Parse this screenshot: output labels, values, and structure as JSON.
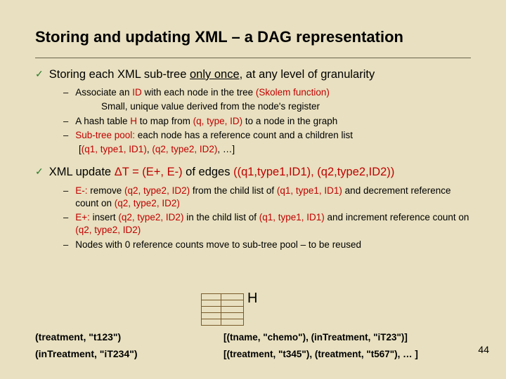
{
  "title": "Storing and updating XML – a DAG representation",
  "bullet1": {
    "lead": "Storing each XML sub-tree ",
    "underline": "only once",
    "tail": ", at any level of granularity"
  },
  "sub1": {
    "a_lead": "Associate an ",
    "a_id": "ID",
    "a_mid": " with each node in the tree  ",
    "a_skolem": "(Skolem function)",
    "a2": "Small, unique value derived from the node's register",
    "b_lead": "A hash table ",
    "b_h": "H",
    "b_mid": " to map from ",
    "b_tuple": "(q, type, ID)",
    "b_tail": " to a node in the graph",
    "c_head": "Sub-tree pool:",
    "c_tail": " each node has a reference count and a children list",
    "c2_lead": "[",
    "c2_t1": "(q1, type1, ID1)",
    "c2_m1": ", ",
    "c2_t2": "(q2, type2, ID2)",
    "c2_tail": ", …]"
  },
  "bullet2": {
    "lead": "XML update ",
    "dt": "ΔT = (E+, E-)",
    "mid": " of edges ",
    "edges": "((q1,type1,ID1), (q2,type2,ID2))"
  },
  "sub2": {
    "a_head": "E-:",
    "a_1": " remove ",
    "a_t2": "(q2, type2, ID2)",
    "a_2": " from the child list of ",
    "a_t1": "(q1, type1, ID1)",
    "a_3": " and decrement reference count on ",
    "a_t2b": "(q2, type2, ID2)",
    "b_head": "E+:",
    "b_1": " insert ",
    "b_t2": "(q2, type2, ID2)",
    "b_2": " in the child list of ",
    "b_t1": "(q1, type1, ID1)",
    "b_3": " and increment reference count on ",
    "b_t2b": "(q2, type2, ID2)",
    "c": "Nodes with 0 reference counts move to sub-tree pool – to be reused"
  },
  "hash": {
    "letter": "H",
    "rows": 5,
    "cols": 2,
    "border_color": "#7a5a2a"
  },
  "map": {
    "k1": "(treatment, \"t123\")",
    "v1": "[(tname, \"chemo\"), (inTreatment, \"iT23\")]",
    "k2": "(inTreatment, \"iT234\")",
    "v2": "[(treatment, \"t345\"), (treatment, \"t567\"), … ]"
  },
  "pagenum": "44",
  "colors": {
    "background": "#e8e0c0",
    "red": "#c00000",
    "check": "#2a7a2a"
  }
}
